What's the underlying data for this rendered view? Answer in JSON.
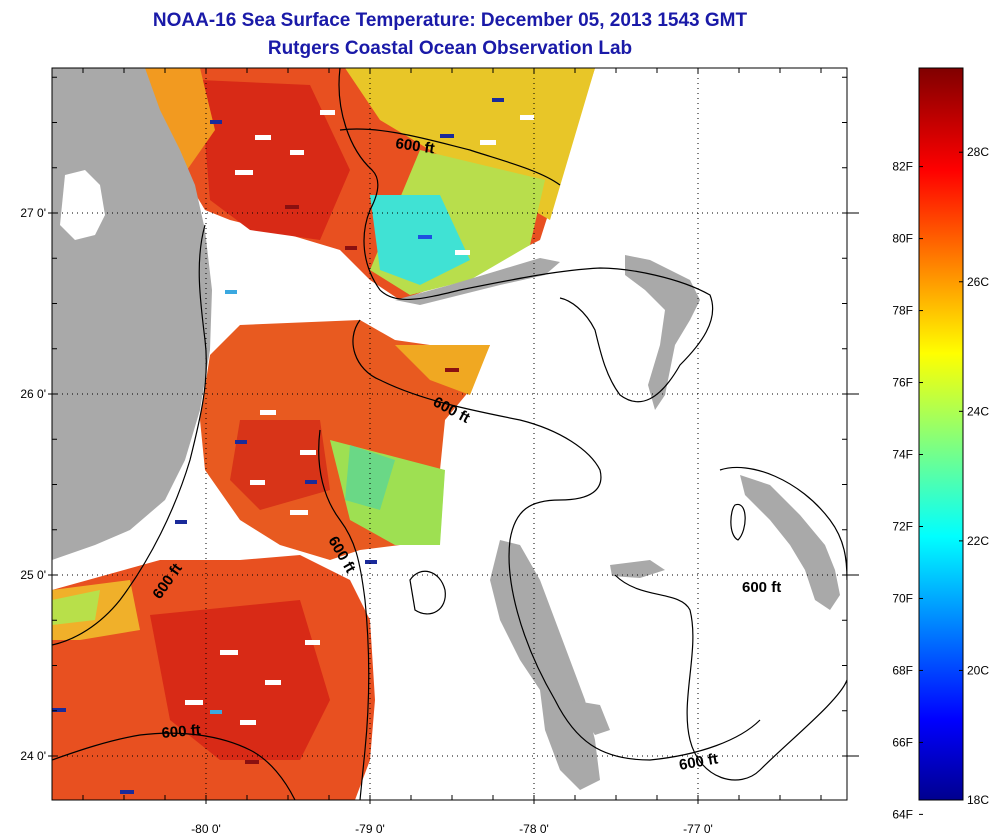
{
  "title": "NOAA-16 Sea Surface Temperature:  December 05, 2013 1543 GMT",
  "subtitle": "Rutgers Coastal Ocean Observation Lab",
  "axes": {
    "lat_ticks": [
      {
        "value": 27,
        "label": "27 0'"
      },
      {
        "value": 26,
        "label": "26 0'"
      },
      {
        "value": 25,
        "label": "25 0'"
      },
      {
        "value": 24,
        "label": "24 0'"
      }
    ],
    "lon_ticks": [
      {
        "value": -80,
        "label": "-80 0'"
      },
      {
        "value": -79,
        "label": "-79 0'"
      },
      {
        "value": -78,
        "label": "-78 0'"
      },
      {
        "value": -77,
        "label": "-77 0'"
      }
    ]
  },
  "contour_labels": [
    "600 ft",
    "600 ft",
    "600 ft",
    "600 ft",
    "600 ft",
    "600 ft"
  ],
  "colorbar": {
    "min_c": 18,
    "max_c": 29.3,
    "fahrenheit_labels": [
      "82F",
      "80F",
      "78F",
      "76F",
      "74F",
      "72F",
      "70F",
      "68F",
      "66F",
      "64F"
    ],
    "fahrenheit_values": [
      82,
      80,
      78,
      76,
      74,
      72,
      70,
      68,
      66,
      64
    ],
    "celsius_labels": [
      "28C",
      "26C",
      "24C",
      "22C",
      "20C",
      "18C"
    ],
    "celsius_values": [
      28,
      26,
      24,
      22,
      20,
      18
    ]
  },
  "colors": {
    "land": "#a9a9a9",
    "title": "#1a1aa8",
    "warm": "#e8401e",
    "hot": "#cc1a10",
    "orange": "#f07a1e",
    "yellow": "#e8d21e",
    "green": "#a8e04a",
    "cyan": "#38e0d8",
    "blue": "#1e50e0"
  }
}
